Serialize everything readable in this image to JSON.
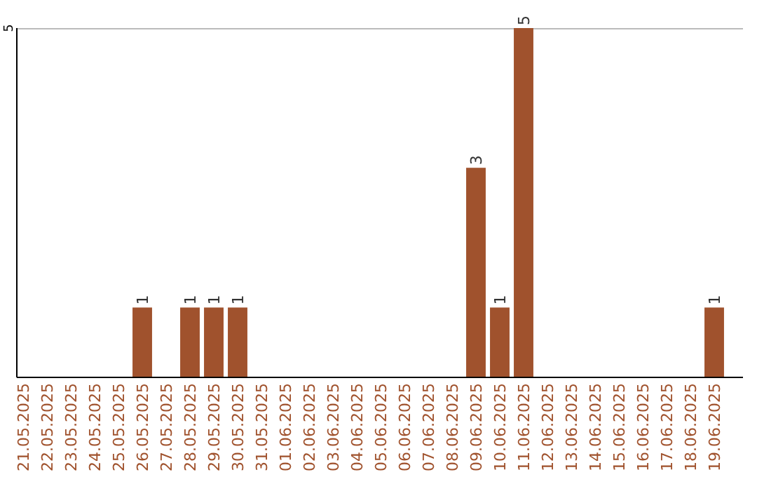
{
  "chart_data": {
    "type": "bar",
    "categories": [
      "21.05.2025",
      "22.05.2025",
      "23.05.2025",
      "24.05.2025",
      "25.05.2025",
      "26.05.2025",
      "27.05.2025",
      "28.05.2025",
      "29.05.2025",
      "30.05.2025",
      "31.05.2025",
      "01.06.2025",
      "02.06.2025",
      "03.06.2025",
      "04.06.2025",
      "05.06.2025",
      "06.06.2025",
      "07.06.2025",
      "08.06.2025",
      "09.06.2025",
      "10.06.2025",
      "11.06.2025",
      "12.06.2025",
      "13.06.2025",
      "14.06.2025",
      "15.06.2025",
      "16.06.2025",
      "17.06.2025",
      "18.06.2025",
      "19.06.2025"
    ],
    "values": [
      0,
      0,
      0,
      0,
      0,
      1,
      0,
      1,
      1,
      1,
      0,
      0,
      0,
      0,
      0,
      0,
      0,
      0,
      0,
      3,
      1,
      5,
      0,
      0,
      0,
      0,
      0,
      0,
      0,
      1
    ],
    "value_labels": [
      null,
      null,
      null,
      null,
      null,
      "1",
      null,
      "1",
      "1",
      "1",
      null,
      null,
      null,
      null,
      null,
      null,
      null,
      null,
      null,
      "3",
      "1",
      "5",
      null,
      null,
      null,
      null,
      null,
      null,
      null,
      "1"
    ],
    "color": "#a0522d",
    "ylim": [
      0,
      5
    ],
    "yticks": [
      5
    ],
    "ref_lines": [
      {
        "axis": "y",
        "value": 5,
        "color": "#bbbbbb"
      }
    ]
  }
}
